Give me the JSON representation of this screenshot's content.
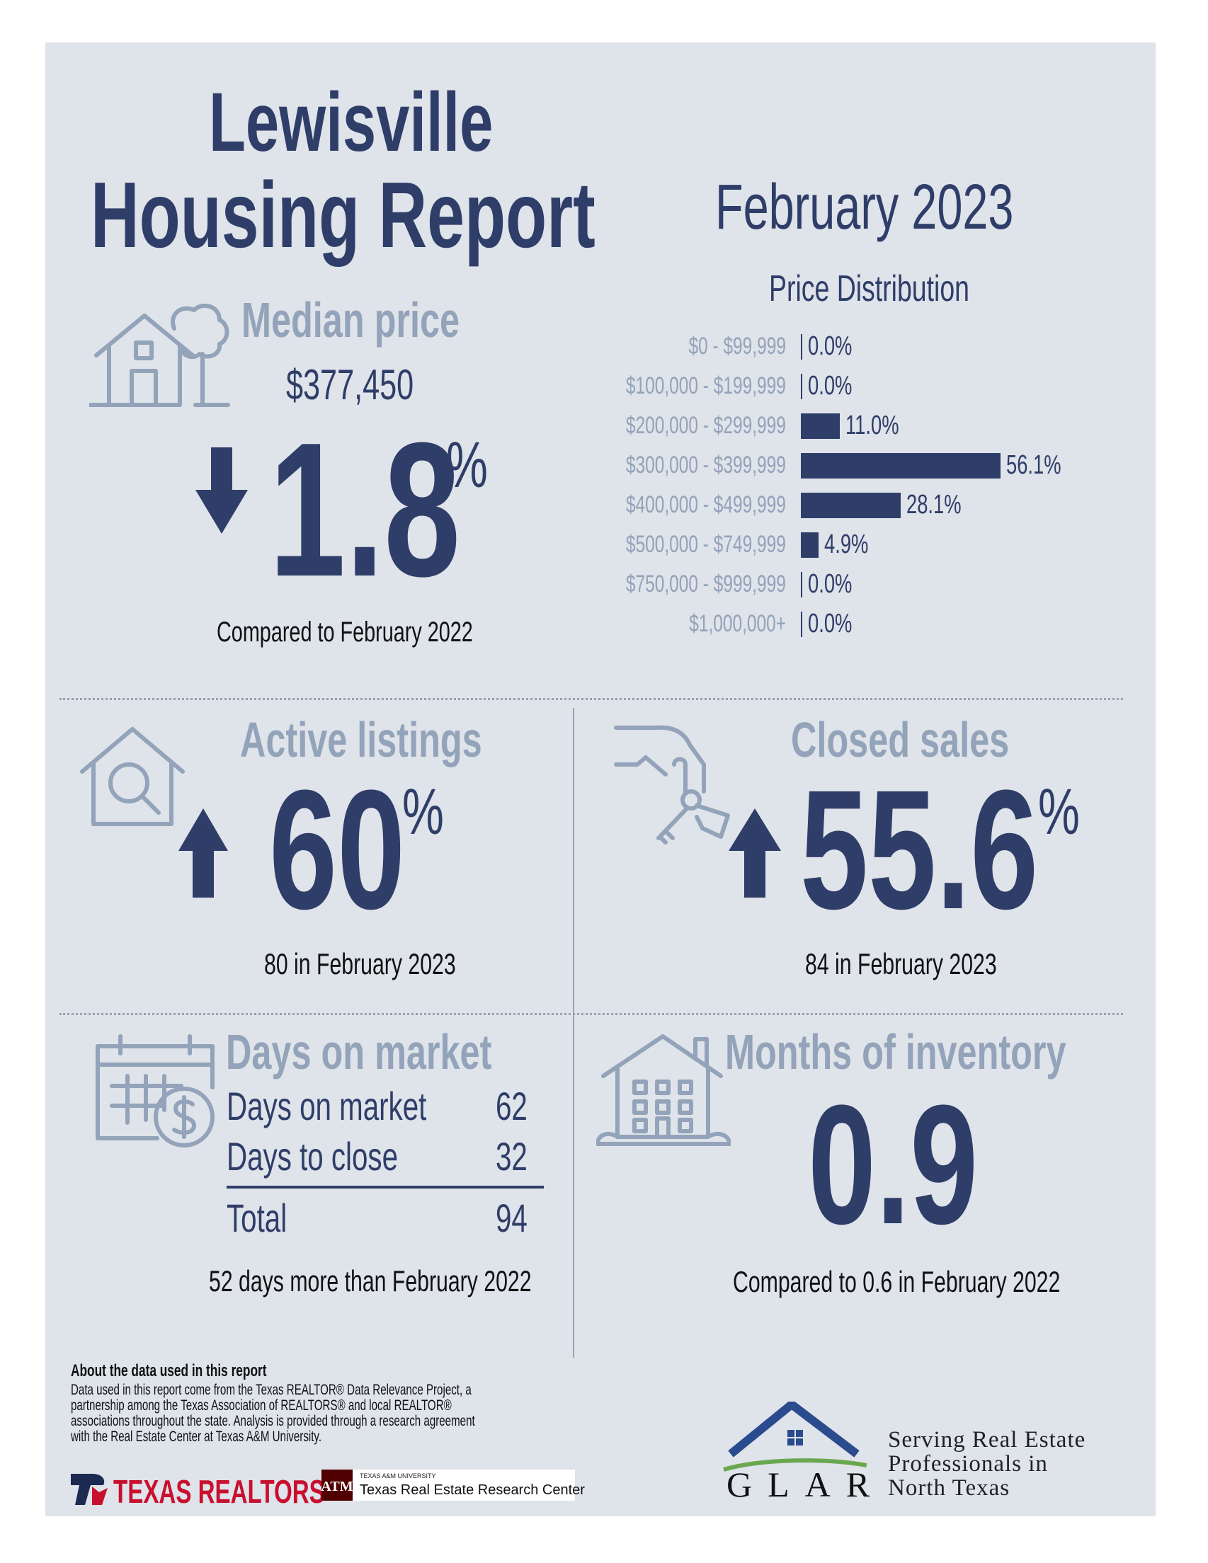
{
  "header": {
    "title_line1": "Lewisville",
    "title_line2": "Housing Report",
    "period": "February 2023"
  },
  "median_price": {
    "heading": "Median price",
    "value": "$377,450",
    "change": "1.8",
    "unit": "%",
    "direction": "down",
    "comparison": "Compared to February 2022",
    "icon": "house-with-tree-icon"
  },
  "price_distribution": {
    "title": "Price Distribution",
    "rows": [
      {
        "range": "$0 - $99,999",
        "label": "0.0%",
        "value": 0.0
      },
      {
        "range": "$100,000 - $199,999",
        "label": "0.0%",
        "value": 0.0
      },
      {
        "range": "$200,000 - $299,999",
        "label": "11.0%",
        "value": 11.0
      },
      {
        "range": "$300,000 - $399,999",
        "label": "56.1%",
        "value": 56.1
      },
      {
        "range": "$400,000 - $499,999",
        "label": "28.1%",
        "value": 28.1
      },
      {
        "range": "$500,000 - $749,999",
        "label": "4.9%",
        "value": 4.9
      },
      {
        "range": "$750,000 - $999,999",
        "label": "0.0%",
        "value": 0.0
      },
      {
        "range": "$1,000,000+",
        "label": "0.0%",
        "value": 0.0
      }
    ]
  },
  "chart_data": {
    "type": "bar",
    "title": "Price Distribution",
    "categories": [
      "$0 - $99,999",
      "$100,000 - $199,999",
      "$200,000 - $299,999",
      "$300,000 - $399,999",
      "$400,000 - $499,999",
      "$500,000 - $749,999",
      "$750,000 - $999,999",
      "$1,000,000+"
    ],
    "values": [
      0.0,
      0.0,
      11.0,
      56.1,
      28.1,
      4.9,
      0.0,
      0.0
    ],
    "orientation": "horizontal",
    "grid": false
  },
  "active_listings": {
    "heading": "Active listings",
    "change": "60",
    "unit": "%",
    "direction": "up",
    "sub": "80 in February 2023",
    "icon": "house-search-icon"
  },
  "closed_sales": {
    "heading": "Closed sales",
    "change": "55.6",
    "unit": "%",
    "direction": "up",
    "sub": "84 in February 2023",
    "icon": "hand-keys-icon"
  },
  "days_on_market": {
    "heading": "Days on market",
    "rows": [
      {
        "label": "Days on market",
        "value": "62"
      },
      {
        "label": "Days to close",
        "value": "32"
      }
    ],
    "total_label": "Total",
    "total_value": "94",
    "comparison": "52 days more than February 2022",
    "icon": "calendar-dollar-icon"
  },
  "months_inventory": {
    "heading": "Months of inventory",
    "value": "0.9",
    "comparison": "Compared to 0.6 in February 2022",
    "icon": "apartment-house-icon"
  },
  "footer": {
    "about_title": "About the data used in this report",
    "about_lines": [
      "Data used in this report come from the Texas REALTOR® Data Relevance Project, a",
      "partnership among the Texas Association of REALTORS® and local REALTOR®",
      "associations throughout the state. Analysis is provided through a research agreement",
      "with the Real Estate Center at Texas A&M University."
    ],
    "texas_realtors": "TEXAS REALTORS",
    "tamu_small": "TEXAS A&M UNIVERSITY",
    "tamu_name": "Texas Real Estate Research Center",
    "glar": "GLAR",
    "serving": [
      "Serving Real Estate",
      "Professionals in",
      "North Texas"
    ]
  },
  "colors": {
    "navy": "#2f3e68",
    "muted": "#93a3b9",
    "panel": "#dfe3ea"
  }
}
